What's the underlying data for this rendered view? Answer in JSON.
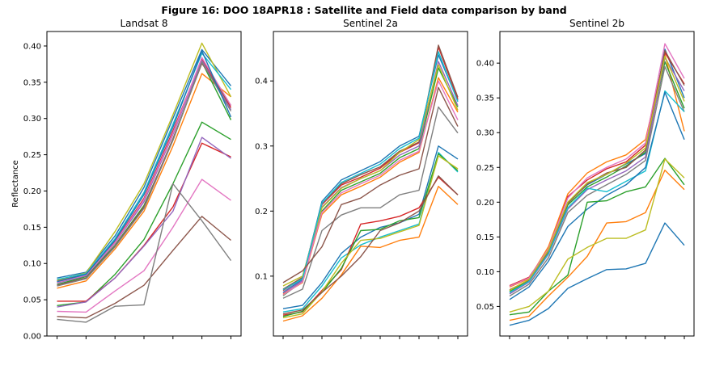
{
  "figure_title": "Figure 16: DOO 18APR18 : Satellite and Field data comparison by band",
  "chart_data": [
    {
      "type": "line",
      "title": "Landsat 8",
      "xlabel": "",
      "ylabel": "Reflectance",
      "ylim": [
        0.0,
        0.42
      ],
      "xlim": [
        -0.35,
        6.35
      ],
      "yticks": [
        "0.00",
        "0.05",
        "0.10",
        "0.15",
        "0.20",
        "0.25",
        "0.30",
        "0.35",
        "0.40"
      ],
      "x": [
        0,
        1,
        2,
        3,
        4,
        5,
        6
      ],
      "x_tick_labels": "none",
      "grid": false,
      "series": [
        {
          "color": "#1f77b4",
          "values": [
            0.08,
            0.088,
            0.138,
            0.205,
            0.3,
            0.395,
            0.345
          ]
        },
        {
          "color": "#ff7f0e",
          "values": [
            0.066,
            0.076,
            0.12,
            0.172,
            0.262,
            0.362,
            0.33
          ]
        },
        {
          "color": "#2ca02c",
          "values": [
            0.071,
            0.082,
            0.125,
            0.18,
            0.27,
            0.378,
            0.298
          ]
        },
        {
          "color": "#d62728",
          "values": [
            0.076,
            0.085,
            0.13,
            0.19,
            0.283,
            0.382,
            0.315
          ]
        },
        {
          "color": "#9467bd",
          "values": [
            0.073,
            0.083,
            0.128,
            0.185,
            0.278,
            0.38,
            0.312
          ]
        },
        {
          "color": "#8c564b",
          "values": [
            0.07,
            0.08,
            0.124,
            0.178,
            0.272,
            0.376,
            0.318
          ]
        },
        {
          "color": "#e377c2",
          "values": [
            0.074,
            0.084,
            0.129,
            0.188,
            0.28,
            0.384,
            0.318
          ]
        },
        {
          "color": "#7f7f7f",
          "values": [
            0.069,
            0.079,
            0.123,
            0.176,
            0.27,
            0.378,
            0.31
          ]
        },
        {
          "color": "#bcbd22",
          "values": [
            0.077,
            0.087,
            0.144,
            0.21,
            0.305,
            0.404,
            0.33
          ]
        },
        {
          "color": "#17becf",
          "values": [
            0.078,
            0.086,
            0.134,
            0.198,
            0.292,
            0.39,
            0.34
          ]
        },
        {
          "color": "#1f77b4",
          "values": [
            0.075,
            0.085,
            0.132,
            0.195,
            0.288,
            0.393,
            0.302
          ]
        },
        {
          "color": "#2ca02c",
          "values": [
            0.042,
            0.047,
            0.085,
            0.133,
            0.21,
            0.295,
            0.271
          ]
        },
        {
          "color": "#d62728",
          "values": [
            0.048,
            0.048,
            0.08,
            0.125,
            0.178,
            0.266,
            0.247
          ]
        },
        {
          "color": "#9467bd",
          "values": [
            0.04,
            0.047,
            0.08,
            0.124,
            0.172,
            0.274,
            0.245
          ]
        },
        {
          "color": "#e377c2",
          "values": [
            0.034,
            0.033,
            0.062,
            0.09,
            0.15,
            0.216,
            0.187
          ]
        },
        {
          "color": "#8c564b",
          "values": [
            0.027,
            0.025,
            0.045,
            0.07,
            0.118,
            0.165,
            0.132
          ]
        },
        {
          "color": "#7f7f7f",
          "values": [
            0.023,
            0.019,
            0.041,
            0.043,
            0.21,
            0.159,
            0.104
          ]
        }
      ]
    },
    {
      "type": "line",
      "title": "Sentinel 2a",
      "xlabel": "",
      "ylabel": "",
      "ylim": [
        0.008,
        0.476
      ],
      "xlim": [
        -0.5,
        9.5
      ],
      "yticks": [
        "0.1",
        "0.2",
        "0.3",
        "0.4"
      ],
      "x": [
        0,
        1,
        2,
        3,
        4,
        5,
        6,
        7,
        8,
        9
      ],
      "x_tick_labels": "none",
      "grid": false,
      "series": [
        {
          "color": "#1f77b4",
          "values": [
            0.075,
            0.095,
            0.215,
            0.248,
            0.262,
            0.276,
            0.3,
            0.315,
            0.44,
            0.37
          ]
        },
        {
          "color": "#ff7f0e",
          "values": [
            0.072,
            0.09,
            0.195,
            0.225,
            0.238,
            0.252,
            0.275,
            0.29,
            0.405,
            0.352
          ]
        },
        {
          "color": "#2ca02c",
          "values": [
            0.07,
            0.092,
            0.2,
            0.232,
            0.245,
            0.258,
            0.282,
            0.296,
            0.42,
            0.36
          ]
        },
        {
          "color": "#d62728",
          "values": [
            0.078,
            0.097,
            0.21,
            0.24,
            0.252,
            0.266,
            0.29,
            0.305,
            0.452,
            0.372
          ]
        },
        {
          "color": "#9467bd",
          "values": [
            0.074,
            0.093,
            0.206,
            0.236,
            0.25,
            0.262,
            0.286,
            0.3,
            0.43,
            0.362
          ]
        },
        {
          "color": "#8c564b",
          "values": [
            0.08,
            0.098,
            0.212,
            0.242,
            0.256,
            0.268,
            0.292,
            0.306,
            0.455,
            0.375
          ]
        },
        {
          "color": "#e377c2",
          "values": [
            0.071,
            0.091,
            0.198,
            0.228,
            0.242,
            0.255,
            0.278,
            0.292,
            0.4,
            0.34
          ]
        },
        {
          "color": "#bcbd22",
          "values": [
            0.085,
            0.1,
            0.205,
            0.235,
            0.25,
            0.262,
            0.29,
            0.31,
            0.425,
            0.355
          ]
        },
        {
          "color": "#17becf",
          "values": [
            0.079,
            0.096,
            0.212,
            0.244,
            0.258,
            0.272,
            0.296,
            0.312,
            0.445,
            0.368
          ]
        },
        {
          "color": "#7f7f7f",
          "values": [
            0.066,
            0.08,
            0.17,
            0.194,
            0.205,
            0.205,
            0.225,
            0.232,
            0.36,
            0.32
          ]
        },
        {
          "color": "#8c564b",
          "values": [
            0.09,
            0.108,
            0.145,
            0.21,
            0.22,
            0.24,
            0.255,
            0.265,
            0.39,
            0.33
          ]
        },
        {
          "color": "#1f77b4",
          "values": [
            0.05,
            0.055,
            0.09,
            0.135,
            0.16,
            0.175,
            0.182,
            0.195,
            0.3,
            0.28
          ]
        },
        {
          "color": "#17becf",
          "values": [
            0.045,
            0.05,
            0.085,
            0.128,
            0.148,
            0.16,
            0.17,
            0.18,
            0.29,
            0.26
          ]
        },
        {
          "color": "#d62728",
          "values": [
            0.04,
            0.045,
            0.078,
            0.11,
            0.18,
            0.185,
            0.192,
            0.205,
            0.252,
            0.225
          ]
        },
        {
          "color": "#2ca02c",
          "values": [
            0.038,
            0.046,
            0.075,
            0.112,
            0.17,
            0.172,
            0.185,
            0.19,
            0.288,
            0.262
          ]
        },
        {
          "color": "#bcbd22",
          "values": [
            0.036,
            0.042,
            0.076,
            0.12,
            0.155,
            0.158,
            0.168,
            0.178,
            0.285,
            0.265
          ]
        },
        {
          "color": "#ff7f0e",
          "values": [
            0.031,
            0.039,
            0.066,
            0.102,
            0.146,
            0.144,
            0.155,
            0.16,
            0.238,
            0.21
          ]
        },
        {
          "color": "#8c564b",
          "values": [
            0.042,
            0.048,
            0.075,
            0.1,
            0.13,
            0.17,
            0.182,
            0.2,
            0.254,
            0.225
          ]
        }
      ]
    },
    {
      "type": "line",
      "title": "Sentinel 2b",
      "xlabel": "",
      "ylabel": "",
      "ylim": [
        0.0075,
        0.4455
      ],
      "xlim": [
        -0.5,
        9.5
      ],
      "yticks": [
        "0.05",
        "0.10",
        "0.15",
        "0.20",
        "0.25",
        "0.30",
        "0.35",
        "0.40"
      ],
      "x": [
        0,
        1,
        2,
        3,
        4,
        5,
        6,
        7,
        8,
        9
      ],
      "x_tick_labels": "none",
      "grid": false,
      "series": [
        {
          "color": "#1f77b4",
          "values": [
            0.07,
            0.086,
            0.13,
            0.2,
            0.225,
            0.24,
            0.255,
            0.27,
            0.42,
            0.35
          ]
        },
        {
          "color": "#ff7f0e",
          "values": [
            0.078,
            0.09,
            0.136,
            0.212,
            0.242,
            0.258,
            0.268,
            0.29,
            0.412,
            0.302
          ]
        },
        {
          "color": "#2ca02c",
          "values": [
            0.072,
            0.087,
            0.13,
            0.196,
            0.222,
            0.236,
            0.252,
            0.272,
            0.402,
            0.335
          ]
        },
        {
          "color": "#d62728",
          "values": [
            0.08,
            0.092,
            0.132,
            0.208,
            0.232,
            0.248,
            0.258,
            0.282,
            0.415,
            0.37
          ]
        },
        {
          "color": "#9467bd",
          "values": [
            0.068,
            0.085,
            0.125,
            0.19,
            0.218,
            0.232,
            0.245,
            0.265,
            0.408,
            0.36
          ]
        },
        {
          "color": "#8c564b",
          "values": [
            0.074,
            0.088,
            0.128,
            0.198,
            0.226,
            0.242,
            0.25,
            0.275,
            0.418,
            0.368
          ]
        },
        {
          "color": "#e377c2",
          "values": [
            0.079,
            0.091,
            0.133,
            0.206,
            0.235,
            0.25,
            0.262,
            0.285,
            0.428,
            0.378
          ]
        },
        {
          "color": "#7f7f7f",
          "values": [
            0.065,
            0.082,
            0.12,
            0.185,
            0.21,
            0.225,
            0.24,
            0.26,
            0.395,
            0.33
          ]
        },
        {
          "color": "#bcbd22",
          "values": [
            0.073,
            0.089,
            0.131,
            0.2,
            0.228,
            0.24,
            0.256,
            0.278,
            0.41,
            0.345
          ]
        },
        {
          "color": "#17becf",
          "values": [
            0.07,
            0.086,
            0.126,
            0.192,
            0.22,
            0.215,
            0.23,
            0.245,
            0.36,
            0.33
          ]
        },
        {
          "color": "#1f77b4",
          "values": [
            0.06,
            0.078,
            0.115,
            0.165,
            0.19,
            0.21,
            0.225,
            0.25,
            0.358,
            0.29
          ]
        },
        {
          "color": "#2ca02c",
          "values": [
            0.038,
            0.042,
            0.072,
            0.095,
            0.2,
            0.202,
            0.215,
            0.222,
            0.263,
            0.225
          ]
        },
        {
          "color": "#ff7f0e",
          "values": [
            0.03,
            0.036,
            0.065,
            0.092,
            0.122,
            0.17,
            0.172,
            0.185,
            0.246,
            0.218
          ]
        },
        {
          "color": "#bcbd22",
          "values": [
            0.042,
            0.05,
            0.072,
            0.118,
            0.135,
            0.148,
            0.148,
            0.16,
            0.262,
            0.235
          ]
        },
        {
          "color": "#1f77b4",
          "values": [
            0.023,
            0.03,
            0.047,
            0.076,
            0.09,
            0.103,
            0.104,
            0.112,
            0.17,
            0.138
          ]
        }
      ]
    }
  ]
}
